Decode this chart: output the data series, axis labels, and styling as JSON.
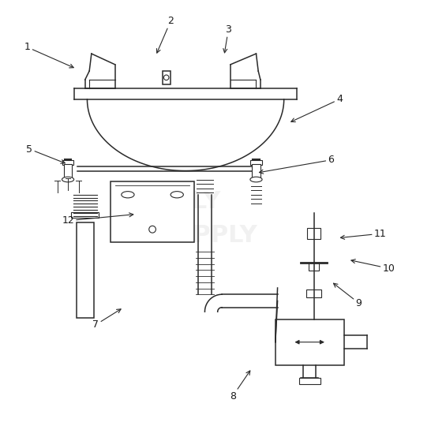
{
  "background_color": "#ffffff",
  "line_color": "#2a2a2a",
  "label_color": "#1a1a1a",
  "figsize": [
    5.46,
    5.54
  ],
  "dpi": 100,
  "label_info": [
    [
      "1",
      [
        0.06,
        0.895
      ],
      [
        0.175,
        0.845
      ]
    ],
    [
      "2",
      [
        0.395,
        0.955
      ],
      [
        0.36,
        0.875
      ]
    ],
    [
      "3",
      [
        0.53,
        0.935
      ],
      [
        0.52,
        0.875
      ]
    ],
    [
      "4",
      [
        0.79,
        0.775
      ],
      [
        0.67,
        0.72
      ]
    ],
    [
      "5",
      [
        0.065,
        0.66
      ],
      [
        0.155,
        0.625
      ]
    ],
    [
      "6",
      [
        0.77,
        0.635
      ],
      [
        0.595,
        0.605
      ]
    ],
    [
      "7",
      [
        0.22,
        0.255
      ],
      [
        0.285,
        0.295
      ]
    ],
    [
      "8",
      [
        0.54,
        0.09
      ],
      [
        0.585,
        0.155
      ]
    ],
    [
      "9",
      [
        0.835,
        0.305
      ],
      [
        0.77,
        0.355
      ]
    ],
    [
      "10",
      [
        0.905,
        0.385
      ],
      [
        0.81,
        0.405
      ]
    ],
    [
      "11",
      [
        0.885,
        0.465
      ],
      [
        0.785,
        0.455
      ]
    ],
    [
      "12",
      [
        0.155,
        0.495
      ],
      [
        0.315,
        0.51
      ]
    ]
  ]
}
